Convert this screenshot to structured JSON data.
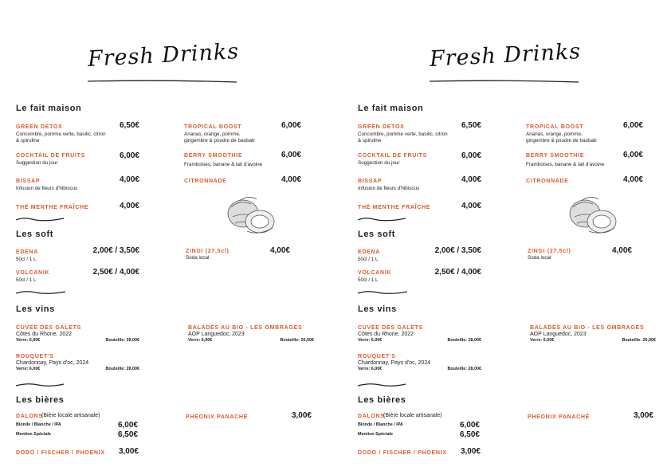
{
  "title": "Fresh Drinks",
  "sections": [
    {
      "title": "Le fait maison",
      "items": [
        {
          "name": "GREEN DETOX",
          "description": [
            "Concombre, pomme verte, basilic, citron",
            "& spiruline"
          ],
          "price": "6,50€"
        },
        {
          "name": "COCKTAIL DE FRUITS",
          "description": [
            "Suggestion du jour"
          ],
          "price": "6,00€"
        },
        {
          "name": "BISSAP",
          "description": [
            "Infusion de fleurs d'hibiscus"
          ],
          "price": "4,00€"
        },
        {
          "name": "THÉ MENTHE FRAÎCHE",
          "price": "4,00€"
        },
        {
          "name": "TROPICAL BOOST",
          "description": [
            "Ananas, orange, pomme,",
            "gingembre & poudre de baobab"
          ],
          "price": "6,00€"
        },
        {
          "name": "BERRY SMOOTHIE",
          "description": [
            "Framboises, banane & lait d'avoine"
          ],
          "price": "6,00€"
        },
        {
          "name": "CITRONNADE",
          "price": "4,00€"
        }
      ]
    },
    {
      "title": "Les soft",
      "items": [
        {
          "name": "EDENA",
          "description": [
            "50cl / 1 L"
          ],
          "price": "2,00€ / 3,50€"
        },
        {
          "name": "VOLCANIK",
          "description": [
            "50cl / 1 L"
          ],
          "price": "2,50€ / 4,00€"
        },
        {
          "name": "ZINGI (27,5cl)",
          "description": [
            "Soda local"
          ],
          "price": "4,00€"
        }
      ]
    },
    {
      "title": "Les vins",
      "items": [
        {
          "name": "CUVEE DES GALETS",
          "origin": "Côtes du Rhone, 2022",
          "glass": "Verre: 6,00€",
          "bottle": "Bouteille: 28,00€"
        },
        {
          "name": "BALADES AU BIO - LES OMBRAGES",
          "origin": "AOP Languedoc, 2023",
          "glass": "Verre: 6,00€",
          "bottle": "Bouteille: 26,00€"
        },
        {
          "name": "ROUQUET'S",
          "origin": "Chardonnay, Pays d'oc, 2024",
          "glass": "Verre: 6,00€",
          "bottle": "Bouteille: 28,00€"
        }
      ]
    },
    {
      "title": "Les bières",
      "items": [
        {
          "name": "DALONS",
          "note": "(Bière locale artisanale)",
          "options": [
            {
              "label": "Blonde / Blanche / IPA",
              "price": "6,00€"
            },
            {
              "label": "Mention Spéciale",
              "price": "6,50€"
            }
          ]
        },
        {
          "name": "DODO / FISCHER / PHOENIX",
          "price": "3,00€"
        },
        {
          "name": "PHEONIX PANACHÉ",
          "price": "3,00€"
        }
      ]
    }
  ]
}
